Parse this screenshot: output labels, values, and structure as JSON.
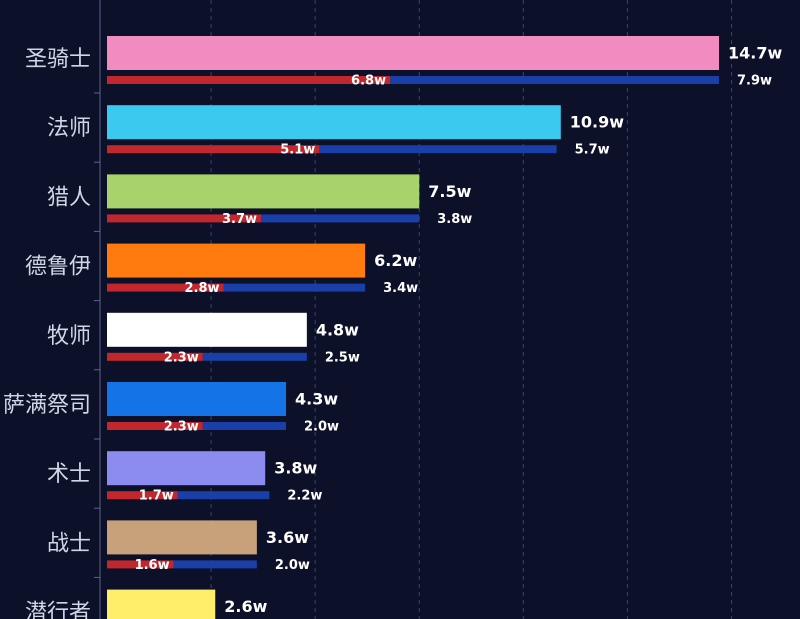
{
  "chart_data": {
    "type": "bar",
    "orientation": "horizontal",
    "title": "",
    "xlabel": "",
    "ylabel": "",
    "xlim": [
      0,
      15
    ],
    "grid": true,
    "unit_suffix": "w",
    "categories": [
      "圣骑士",
      "法师",
      "猎人",
      "德鲁伊",
      "牧师",
      "萨满祭司",
      "术士",
      "战士",
      "潜行者"
    ],
    "totals": [
      14.7,
      10.9,
      7.5,
      6.2,
      4.8,
      4.3,
      3.8,
      3.6,
      2.6
    ],
    "totals_labels": [
      "14.7w",
      "10.9w",
      "7.5w",
      "6.2w",
      "4.8w",
      "4.3w",
      "3.8w",
      "3.6w",
      "2.6w"
    ],
    "bar_colors": [
      "#f28cc0",
      "#3cc9f0",
      "#a8d26c",
      "#ff7b0f",
      "#ffffff",
      "#1473e6",
      "#8c8cf0",
      "#c8a07a",
      "#ffee6a"
    ],
    "series": [
      {
        "values": [
          6.8,
          5.1,
          3.7,
          2.8,
          2.3,
          2.3,
          1.7,
          1.6,
          null
        ],
        "labels": [
          "6.8w",
          "5.1w",
          "3.7w",
          "2.8w",
          "2.3w",
          "2.3w",
          "1.7w",
          "1.6w",
          ""
        ],
        "color": "#c1272d"
      },
      {
        "values": [
          7.9,
          5.7,
          3.8,
          3.4,
          2.5,
          2.0,
          2.2,
          2.0,
          null
        ],
        "labels": [
          "7.9w",
          "5.7w",
          "3.8w",
          "3.4w",
          "2.5w",
          "2.0w",
          "2.2w",
          "2.0w",
          ""
        ],
        "color": "#1a3fa8"
      }
    ]
  }
}
